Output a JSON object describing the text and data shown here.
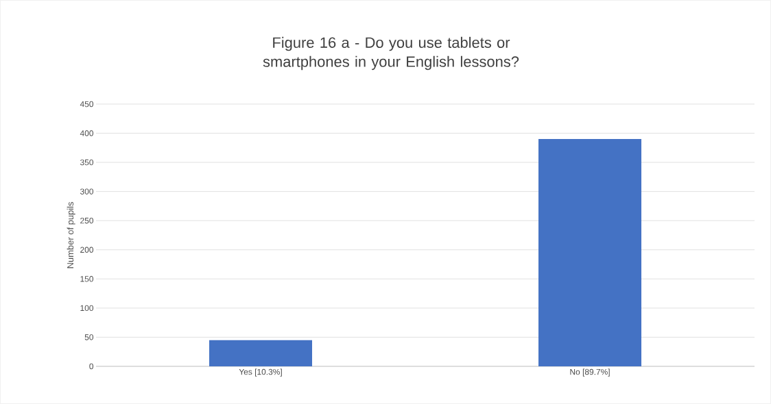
{
  "chart_data": {
    "type": "bar",
    "title": "Figure 16 a - Do you use tablets or smartphones in your English lessons?",
    "ylabel": "Number of pupils",
    "categories": [
      "Yes [10.3%]",
      "No [89.7%]"
    ],
    "values": [
      45,
      390
    ],
    "color": "#4472c4",
    "ylim": [
      0,
      450
    ],
    "yticks": [
      0,
      50,
      100,
      150,
      200,
      250,
      300,
      350,
      400,
      450
    ],
    "grid": "y"
  }
}
